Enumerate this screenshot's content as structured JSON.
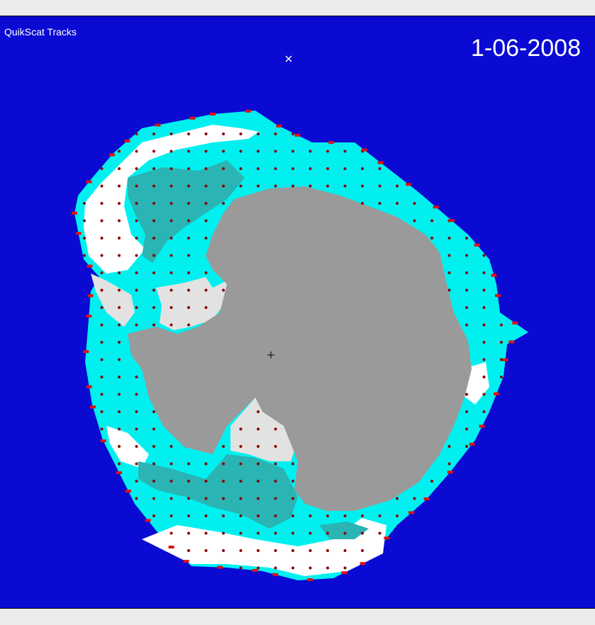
{
  "title": "QuikScat Tracks",
  "date": "1-06-2008",
  "colors": {
    "ocean": "#0a0ad2",
    "land": "#9a9a9a",
    "ice_shelf": "#e2e2e2",
    "sea_ice_cyan": "#00f0f0",
    "sea_ice_teal": "#2ab4b4",
    "sea_ice_white": "#ffffff",
    "track_points": "#8a0000",
    "edge_red": "#e01010"
  },
  "markers": {
    "north_marker": "x-mark",
    "pole_marker": "plus-mark"
  }
}
